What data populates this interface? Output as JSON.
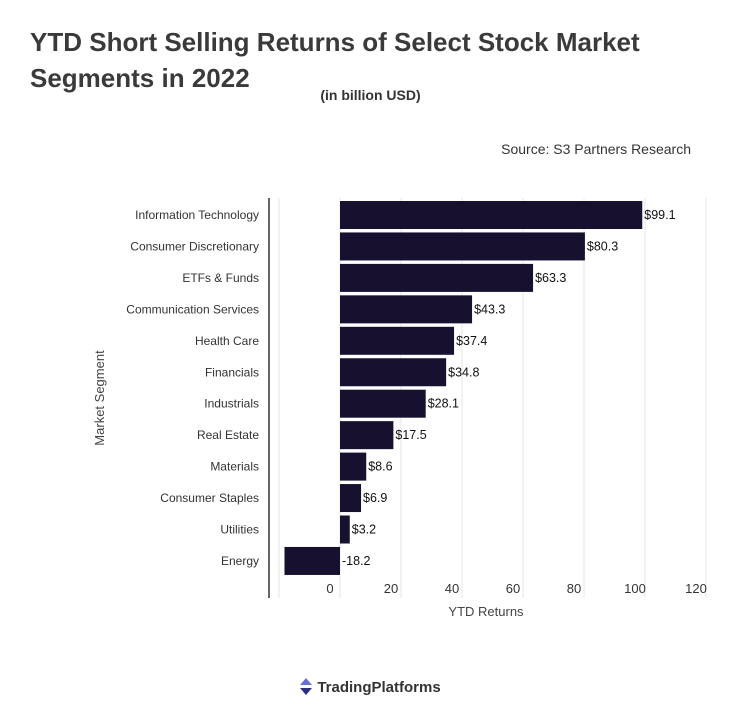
{
  "header": {
    "title": "YTD Short Selling Returns of Select Stock Market Segments in 2022",
    "subtitle": "(in billion USD)",
    "source": "Source: S3 Partners Research"
  },
  "footer": {
    "brand": "TradingPlatforms",
    "logo_icon": "up-down-arrows-icon"
  },
  "chart_data": {
    "type": "bar",
    "orientation": "horizontal",
    "title": "YTD Short Selling Returns of Select Stock Market Segments in 2022",
    "subtitle": "(in billion USD)",
    "xlabel": "YTD Returns",
    "ylabel": "Market Segment",
    "xlim": [
      -20,
      120
    ],
    "xticks": [
      0,
      20,
      40,
      60,
      80,
      100,
      120
    ],
    "grid": true,
    "categories": [
      "Information Technology",
      "Consumer Discretionary",
      "ETFs & Funds",
      "Communication Services",
      "Health Care",
      "Financials",
      "Industrials",
      "Real Estate",
      "Materials",
      "Consumer Staples",
      "Utilities",
      "Energy"
    ],
    "values": [
      99.1,
      80.3,
      63.3,
      43.3,
      37.4,
      34.8,
      28.1,
      17.5,
      8.6,
      6.9,
      3.2,
      -18.2
    ],
    "data_labels": [
      "$99.1",
      "$80.3",
      "$63.3",
      "$43.3",
      "$37.4",
      "$34.8",
      "$28.1",
      "$17.5",
      "$8.6",
      "$6.9",
      "$3.2",
      "-18.2"
    ],
    "bar_color": "#17112f"
  }
}
